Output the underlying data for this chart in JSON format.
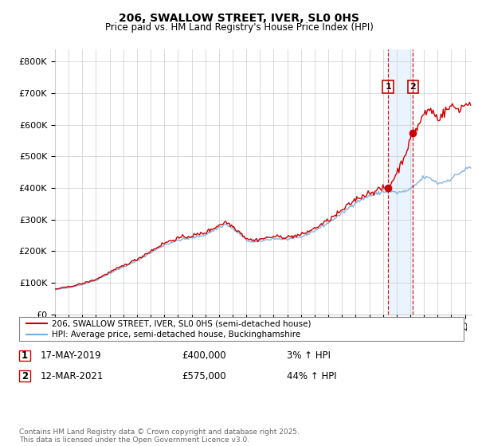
{
  "title": "206, SWALLOW STREET, IVER, SL0 0HS",
  "subtitle": "Price paid vs. HM Land Registry's House Price Index (HPI)",
  "ylabel_ticks": [
    "£0",
    "£100K",
    "£200K",
    "£300K",
    "£400K",
    "£500K",
    "£600K",
    "£700K",
    "£800K"
  ],
  "ytick_values": [
    0,
    100000,
    200000,
    300000,
    400000,
    500000,
    600000,
    700000,
    800000
  ],
  "ylim": [
    0,
    840000
  ],
  "xlim_start": 1995.0,
  "xlim_end": 2025.5,
  "hpi_color": "#7aacdc",
  "property_color": "#cc0000",
  "vline_color": "#cc0000",
  "shade_color": "#ddeeff",
  "transaction1_year": 2019.375,
  "transaction2_year": 2021.19,
  "transaction1_price": 400000,
  "transaction2_price": 575000,
  "legend_property": "206, SWALLOW STREET, IVER, SL0 0HS (semi-detached house)",
  "legend_hpi": "HPI: Average price, semi-detached house, Buckinghamshire",
  "note1_date": "17-MAY-2019",
  "note1_price": "£400,000",
  "note1_hpi": "3% ↑ HPI",
  "note2_date": "12-MAR-2021",
  "note2_price": "£575,000",
  "note2_hpi": "44% ↑ HPI",
  "footer": "Contains HM Land Registry data © Crown copyright and database right 2025.\nThis data is licensed under the Open Government Licence v3.0."
}
